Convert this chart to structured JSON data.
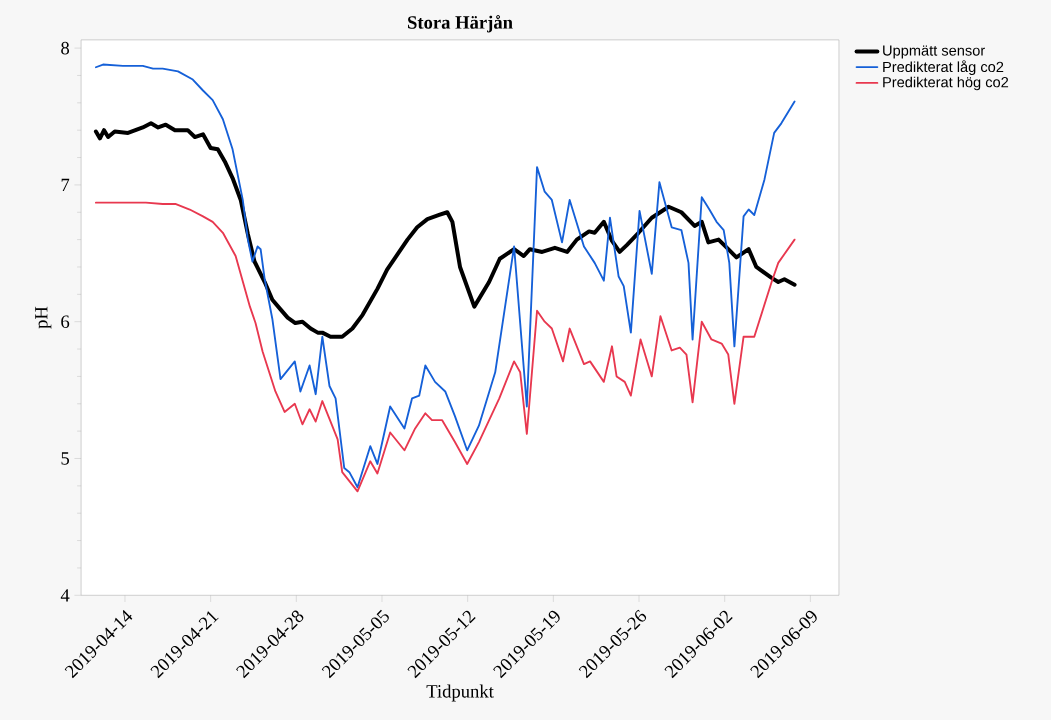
{
  "chart_data": {
    "type": "line",
    "title": "Stora Härjån",
    "xlabel": "Tidpunkt",
    "ylabel": "pH",
    "xlim": [
      "2019-04-10T10:00",
      "2019-06-11T08:00"
    ],
    "ylim": [
      4,
      8.06
    ],
    "xticks": [
      "2019-04-14",
      "2019-04-21",
      "2019-04-28",
      "2019-05-05",
      "2019-05-12",
      "2019-05-19",
      "2019-05-26",
      "2019-06-02",
      "2019-06-09"
    ],
    "yticks": [
      4,
      5,
      6,
      7,
      8
    ],
    "legend": "right",
    "grid": false,
    "series": [
      {
        "name": "Uppmätt sensor",
        "color": "#000000",
        "x": [
          "2019-04-11T15:00",
          "2019-04-11T23:00",
          "2019-04-12T07:00",
          "2019-04-12T15:00",
          "2019-04-13T04:00",
          "2019-04-14T06:00",
          "2019-04-15T11:00",
          "2019-04-16T03:00",
          "2019-04-16T17:00",
          "2019-04-17T08:00",
          "2019-04-18T02:00",
          "2019-04-19T03:00",
          "2019-04-19T17:00",
          "2019-04-20T09:00",
          "2019-04-21T00:00",
          "2019-04-21T14:00",
          "2019-04-22T04:00",
          "2019-04-22T19:00",
          "2019-04-23T11:00",
          "2019-04-24T01:00",
          "2019-04-24T14:00",
          "2019-04-25T10:00",
          "2019-04-26T01:00",
          "2019-04-26T17:00",
          "2019-04-27T07:00",
          "2019-04-27T22:00",
          "2019-04-28T12:00",
          "2019-04-29T04:00",
          "2019-04-29T18:00",
          "2019-04-30T03:00",
          "2019-04-30T19:00",
          "2019-05-01T18:00",
          "2019-05-02T14:00",
          "2019-05-03T10:00",
          "2019-05-04T15:00",
          "2019-05-05T10:00",
          "2019-05-06T06:00",
          "2019-05-07T02:00",
          "2019-05-07T21:00",
          "2019-05-08T17:00",
          "2019-05-09T16:00",
          "2019-05-10T08:00",
          "2019-05-10T18:00",
          "2019-05-11T09:00",
          "2019-05-12T13:00",
          "2019-05-13T18:00",
          "2019-05-14T15:00",
          "2019-05-15T19:00",
          "2019-05-16T14:00",
          "2019-05-17T02:00",
          "2019-05-18T02:00",
          "2019-05-19T03:00",
          "2019-05-20T03:00",
          "2019-05-20T22:00",
          "2019-05-21T22:00",
          "2019-05-22T09:00",
          "2019-05-23T03:00",
          "2019-05-23T19:00",
          "2019-05-24T10:00",
          "2019-05-25T00:00",
          "2019-05-25T23:00",
          "2019-05-27T01:00",
          "2019-05-28T10:00",
          "2019-05-29T11:00",
          "2019-05-30T13:00",
          "2019-05-31T03:00",
          "2019-05-31T16:00",
          "2019-06-01T12:00",
          "2019-06-02T07:00",
          "2019-06-02T23:00",
          "2019-06-03T23:00",
          "2019-06-04T14:00",
          "2019-06-05T20:00",
          "2019-06-06T09:00",
          "2019-06-06T21:00",
          "2019-06-07T17:00"
        ],
        "values": [
          7.39,
          7.34,
          7.4,
          7.35,
          7.39,
          7.38,
          7.42,
          7.45,
          7.42,
          7.44,
          7.4,
          7.4,
          7.35,
          7.37,
          7.27,
          7.26,
          7.17,
          7.05,
          6.89,
          6.64,
          6.44,
          6.29,
          6.16,
          6.09,
          6.03,
          5.99,
          6.0,
          5.95,
          5.92,
          5.92,
          5.89,
          5.89,
          5.95,
          6.05,
          6.24,
          6.38,
          6.49,
          6.6,
          6.69,
          6.75,
          6.78,
          6.8,
          6.73,
          6.4,
          6.11,
          6.29,
          6.46,
          6.53,
          6.48,
          6.53,
          6.51,
          6.54,
          6.51,
          6.6,
          6.66,
          6.65,
          6.73,
          6.59,
          6.51,
          6.56,
          6.65,
          6.76,
          6.84,
          6.8,
          6.7,
          6.73,
          6.58,
          6.6,
          6.53,
          6.47,
          6.53,
          6.4,
          6.32,
          6.29,
          6.31,
          6.27
        ]
      },
      {
        "name": "Predikterat låg co2",
        "color": "#1560d8",
        "x": [
          "2019-04-11T15:00",
          "2019-04-12T05:00",
          "2019-04-13T20:00",
          "2019-04-15T11:00",
          "2019-04-16T07:00",
          "2019-04-17T02:00",
          "2019-04-18T08:00",
          "2019-04-19T13:00",
          "2019-04-20T09:00",
          "2019-04-21T04:00",
          "2019-04-22T00:00",
          "2019-04-22T19:00",
          "2019-04-23T15:00",
          "2019-04-24T01:00",
          "2019-04-24T10:00",
          "2019-04-24T20:00",
          "2019-04-25T02:00",
          "2019-04-25T10:00",
          "2019-04-26T01:00",
          "2019-04-26T17:00",
          "2019-04-27T21:00",
          "2019-04-28T08:00",
          "2019-04-29T02:00",
          "2019-04-29T14:00",
          "2019-04-30T03:00",
          "2019-04-30T17:00",
          "2019-05-01T05:00",
          "2019-05-01T22:00",
          "2019-05-02T08:00",
          "2019-05-03T00:00",
          "2019-05-04T01:00",
          "2019-05-04T15:00",
          "2019-05-05T16:00",
          "2019-05-06T20:00",
          "2019-05-07T11:00",
          "2019-05-08T01:00",
          "2019-05-08T13:00",
          "2019-05-09T08:00",
          "2019-05-10T04:00",
          "2019-05-10T23:00",
          "2019-05-11T23:00",
          "2019-05-12T22:00",
          "2019-05-14T06:00",
          "2019-05-15T19:00",
          "2019-05-16T20:00",
          "2019-05-17T16:00",
          "2019-05-18T07:00",
          "2019-05-18T21:00",
          "2019-05-19T17:00",
          "2019-05-20T08:00",
          "2019-05-21T12:00",
          "2019-05-22T09:00",
          "2019-05-23T03:00",
          "2019-05-23T15:00",
          "2019-05-24T08:00",
          "2019-05-24T18:00",
          "2019-05-25T08:00",
          "2019-05-26T01:00",
          "2019-05-27T01:00",
          "2019-05-27T16:00",
          "2019-05-28T16:00",
          "2019-05-29T11:00",
          "2019-05-30T01:00",
          "2019-05-30T09:00",
          "2019-05-31T03:00",
          "2019-05-31T18:00",
          "2019-06-01T08:00",
          "2019-06-01T22:00",
          "2019-06-02T09:00",
          "2019-06-02T19:00",
          "2019-06-03T13:00",
          "2019-06-03T23:00",
          "2019-06-04T10:00",
          "2019-06-05T06:00",
          "2019-06-06T01:00",
          "2019-06-06T15:00",
          "2019-06-07T17:00"
        ],
        "values": [
          7.86,
          7.88,
          7.87,
          7.87,
          7.85,
          7.85,
          7.83,
          7.77,
          7.69,
          7.62,
          7.48,
          7.26,
          6.89,
          6.6,
          6.44,
          6.55,
          6.53,
          6.31,
          6.02,
          5.58,
          5.71,
          5.49,
          5.68,
          5.47,
          5.89,
          5.53,
          5.44,
          4.93,
          4.9,
          4.79,
          5.09,
          4.96,
          5.38,
          5.22,
          5.44,
          5.46,
          5.68,
          5.56,
          5.49,
          5.31,
          5.06,
          5.24,
          5.63,
          6.55,
          5.38,
          7.13,
          6.95,
          6.89,
          6.58,
          6.89,
          6.55,
          6.43,
          6.3,
          6.76,
          6.33,
          6.26,
          5.92,
          6.81,
          6.35,
          7.02,
          6.69,
          6.67,
          6.43,
          5.87,
          6.91,
          6.82,
          6.73,
          6.67,
          6.43,
          5.82,
          6.77,
          6.82,
          6.78,
          7.04,
          7.38,
          7.45,
          7.61
        ]
      },
      {
        "name": "Predikterat hög co2",
        "color": "#e8384f",
        "x": [
          "2019-04-11T15:00",
          "2019-04-13T01:00",
          "2019-04-15T17:00",
          "2019-04-17T02:00",
          "2019-04-18T04:00",
          "2019-04-19T07:00",
          "2019-04-20T09:00",
          "2019-04-21T04:00",
          "2019-04-22T00:00",
          "2019-04-23T01:00",
          "2019-04-24T05:00",
          "2019-04-24T16:00",
          "2019-04-25T06:00",
          "2019-04-26T07:00",
          "2019-04-27T01:00",
          "2019-04-27T21:00",
          "2019-04-28T12:00",
          "2019-04-29T02:00",
          "2019-04-29T14:00",
          "2019-04-30T03:00",
          "2019-04-30T17:00",
          "2019-05-01T09:00",
          "2019-05-01T18:00",
          "2019-05-03T00:00",
          "2019-05-04T01:00",
          "2019-05-04T15:00",
          "2019-05-05T16:00",
          "2019-05-06T20:00",
          "2019-05-07T17:00",
          "2019-05-08T13:00",
          "2019-05-09T02:00",
          "2019-05-09T22:00",
          "2019-05-10T23:00",
          "2019-05-11T23:00",
          "2019-05-12T22:00",
          "2019-05-14T14:00",
          "2019-05-15T19:00",
          "2019-05-16T07:00",
          "2019-05-16T20:00",
          "2019-05-17T16:00",
          "2019-05-18T07:00",
          "2019-05-18T21:00",
          "2019-05-19T19:00",
          "2019-05-20T08:00",
          "2019-05-21T12:00",
          "2019-05-22T00:00",
          "2019-05-23T03:00",
          "2019-05-23T19:00",
          "2019-05-24T04:00",
          "2019-05-24T20:00",
          "2019-05-25T08:00",
          "2019-05-26T03:00",
          "2019-05-27T01:00",
          "2019-05-27T18:00",
          "2019-05-28T16:00",
          "2019-05-29T08:00",
          "2019-05-29T21:00",
          "2019-05-30T09:00",
          "2019-05-31T03:00",
          "2019-05-31T22:00",
          "2019-06-01T18:00",
          "2019-06-02T07:00",
          "2019-06-02T19:00",
          "2019-06-03T13:00",
          "2019-06-04T10:00",
          "2019-06-05T20:00",
          "2019-06-06T09:00",
          "2019-06-07T17:00"
        ],
        "values": [
          6.87,
          6.87,
          6.87,
          6.86,
          6.86,
          6.82,
          6.77,
          6.73,
          6.65,
          6.48,
          6.11,
          5.99,
          5.78,
          5.49,
          5.34,
          5.4,
          5.25,
          5.36,
          5.27,
          5.42,
          5.29,
          5.14,
          4.9,
          4.76,
          4.98,
          4.89,
          5.19,
          5.06,
          5.22,
          5.33,
          5.28,
          5.28,
          5.12,
          4.96,
          5.12,
          5.44,
          5.71,
          5.63,
          5.18,
          6.08,
          6.0,
          5.95,
          5.71,
          5.95,
          5.69,
          5.71,
          5.56,
          5.82,
          5.6,
          5.56,
          5.46,
          5.87,
          5.6,
          6.04,
          5.79,
          5.81,
          5.76,
          5.41,
          6.0,
          5.87,
          5.84,
          5.76,
          5.4,
          5.89,
          5.89,
          6.29,
          6.43,
          6.6
        ]
      }
    ]
  }
}
